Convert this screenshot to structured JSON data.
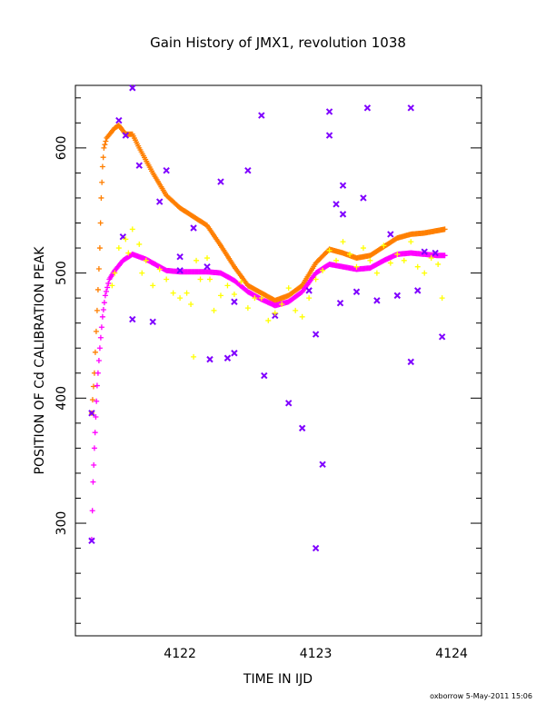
{
  "chart_data": {
    "type": "scatter",
    "title": "Gain History of JMX1, revolution 1038",
    "xlabel": "TIME IN IJD",
    "ylabel": "POSITION OF Cd CALIBRATION PEAK",
    "xlim": [
      4121.23,
      4124.22
    ],
    "ylim": [
      210,
      650
    ],
    "x_ticks": [
      4122,
      4123,
      4124
    ],
    "y_ticks": [
      300,
      400,
      500,
      600
    ],
    "x_ticks_text": [
      "4122",
      "4123",
      "4124"
    ],
    "y_ticks_text": [
      "300",
      "400",
      "500",
      "600"
    ],
    "grid": false,
    "legend": "none",
    "footer": "oxborrow  5-May-2011 15:06",
    "series": [
      {
        "color": "#ff7f00",
        "style": "curve",
        "points": [
          [
            4121.35,
            388
          ],
          [
            4121.37,
            420
          ],
          [
            4121.39,
            470
          ],
          [
            4121.41,
            520
          ],
          [
            4121.42,
            560
          ],
          [
            4121.43,
            585
          ],
          [
            4121.44,
            600
          ],
          [
            4121.46,
            608
          ],
          [
            4121.49,
            612
          ],
          [
            4121.52,
            616
          ],
          [
            4121.55,
            618
          ],
          [
            4121.6,
            611
          ],
          [
            4121.65,
            611
          ],
          [
            4121.7,
            600
          ],
          [
            4121.8,
            580
          ],
          [
            4121.9,
            562
          ],
          [
            4122.0,
            552
          ],
          [
            4122.1,
            545
          ],
          [
            4122.2,
            538
          ],
          [
            4122.3,
            522
          ],
          [
            4122.4,
            505
          ],
          [
            4122.5,
            490
          ],
          [
            4122.6,
            484
          ],
          [
            4122.7,
            478
          ],
          [
            4122.8,
            482
          ],
          [
            4122.9,
            490
          ],
          [
            4123.0,
            508
          ],
          [
            4123.1,
            519
          ],
          [
            4123.2,
            516
          ],
          [
            4123.3,
            512
          ],
          [
            4123.4,
            514
          ],
          [
            4123.5,
            521
          ],
          [
            4123.6,
            528
          ],
          [
            4123.7,
            531
          ],
          [
            4123.8,
            532
          ],
          [
            4123.9,
            534
          ],
          [
            4123.95,
            535
          ]
        ]
      },
      {
        "color": "#ff00ff",
        "style": "curve",
        "points": [
          [
            4121.35,
            287
          ],
          [
            4121.36,
            333
          ],
          [
            4121.37,
            360
          ],
          [
            4121.38,
            385
          ],
          [
            4121.39,
            410
          ],
          [
            4121.41,
            440
          ],
          [
            4121.43,
            465
          ],
          [
            4121.45,
            482
          ],
          [
            4121.48,
            495
          ],
          [
            4121.52,
            502
          ],
          [
            4121.58,
            510
          ],
          [
            4121.65,
            515
          ],
          [
            4121.75,
            511
          ],
          [
            4121.9,
            502
          ],
          [
            4122.0,
            501
          ],
          [
            4122.1,
            501
          ],
          [
            4122.2,
            501
          ],
          [
            4122.3,
            500
          ],
          [
            4122.4,
            494
          ],
          [
            4122.5,
            485
          ],
          [
            4122.6,
            479
          ],
          [
            4122.7,
            474
          ],
          [
            4122.8,
            477
          ],
          [
            4122.9,
            485
          ],
          [
            4123.0,
            500
          ],
          [
            4123.1,
            507
          ],
          [
            4123.2,
            505
          ],
          [
            4123.3,
            503
          ],
          [
            4123.4,
            504
          ],
          [
            4123.5,
            510
          ],
          [
            4123.6,
            515
          ],
          [
            4123.7,
            516
          ],
          [
            4123.8,
            515
          ],
          [
            4123.9,
            514
          ],
          [
            4123.95,
            514
          ]
        ]
      },
      {
        "color": "#7f00ff",
        "style": "points",
        "points": [
          [
            4121.35,
            388
          ],
          [
            4121.35,
            286
          ],
          [
            4121.55,
            622
          ],
          [
            4121.6,
            610
          ],
          [
            4121.65,
            648
          ],
          [
            4121.58,
            529
          ],
          [
            4121.65,
            463
          ],
          [
            4121.8,
            461
          ],
          [
            4121.7,
            586
          ],
          [
            4121.85,
            557
          ],
          [
            4121.9,
            582
          ],
          [
            4122.0,
            502
          ],
          [
            4122.0,
            513
          ],
          [
            4122.1,
            536
          ],
          [
            4122.2,
            505
          ],
          [
            4122.22,
            431
          ],
          [
            4122.3,
            573
          ],
          [
            4122.35,
            432
          ],
          [
            4122.4,
            436
          ],
          [
            4122.4,
            477
          ],
          [
            4122.5,
            582
          ],
          [
            4122.6,
            626
          ],
          [
            4122.62,
            418
          ],
          [
            4122.7,
            466
          ],
          [
            4122.8,
            396
          ],
          [
            4122.9,
            376
          ],
          [
            4122.95,
            486
          ],
          [
            4123.0,
            451
          ],
          [
            4123.0,
            280
          ],
          [
            4123.05,
            347
          ],
          [
            4123.1,
            629
          ],
          [
            4123.1,
            610
          ],
          [
            4123.15,
            555
          ],
          [
            4123.2,
            570
          ],
          [
            4123.2,
            547
          ],
          [
            4123.18,
            476
          ],
          [
            4123.3,
            485
          ],
          [
            4123.35,
            560
          ],
          [
            4123.38,
            632
          ],
          [
            4123.45,
            478
          ],
          [
            4123.55,
            531
          ],
          [
            4123.6,
            482
          ],
          [
            4123.7,
            632
          ],
          [
            4123.7,
            429
          ],
          [
            4123.75,
            486
          ],
          [
            4123.8,
            517
          ],
          [
            4123.93,
            449
          ],
          [
            4123.88,
            516
          ]
        ]
      },
      {
        "color": "#ffff00",
        "style": "points",
        "points": [
          [
            4121.5,
            490
          ],
          [
            4121.52,
            500
          ],
          [
            4121.55,
            520
          ],
          [
            4121.6,
            527
          ],
          [
            4121.62,
            516
          ],
          [
            4121.65,
            535
          ],
          [
            4121.7,
            523
          ],
          [
            4121.72,
            500
          ],
          [
            4121.75,
            510
          ],
          [
            4121.8,
            490
          ],
          [
            4121.85,
            503
          ],
          [
            4121.9,
            495
          ],
          [
            4121.95,
            484
          ],
          [
            4122.0,
            480
          ],
          [
            4122.05,
            484
          ],
          [
            4122.08,
            475
          ],
          [
            4122.1,
            433
          ],
          [
            4122.12,
            510
          ],
          [
            4122.15,
            495
          ],
          [
            4122.2,
            512
          ],
          [
            4122.22,
            495
          ],
          [
            4122.25,
            470
          ],
          [
            4122.3,
            482
          ],
          [
            4122.35,
            490
          ],
          [
            4122.4,
            483
          ],
          [
            4122.45,
            493
          ],
          [
            4122.5,
            472
          ],
          [
            4122.55,
            480
          ],
          [
            4122.6,
            480
          ],
          [
            4122.65,
            462
          ],
          [
            4122.7,
            468
          ],
          [
            4122.75,
            475
          ],
          [
            4122.8,
            488
          ],
          [
            4122.85,
            470
          ],
          [
            4122.9,
            465
          ],
          [
            4122.95,
            480
          ],
          [
            4123.0,
            495
          ],
          [
            4123.05,
            502
          ],
          [
            4123.1,
            518
          ],
          [
            4123.15,
            510
          ],
          [
            4123.2,
            525
          ],
          [
            4123.25,
            515
          ],
          [
            4123.3,
            505
          ],
          [
            4123.35,
            520
          ],
          [
            4123.4,
            510
          ],
          [
            4123.45,
            500
          ],
          [
            4123.5,
            522
          ],
          [
            4123.55,
            508
          ],
          [
            4123.6,
            515
          ],
          [
            4123.65,
            510
          ],
          [
            4123.7,
            525
          ],
          [
            4123.75,
            505
          ],
          [
            4123.8,
            500
          ],
          [
            4123.85,
            512
          ],
          [
            4123.9,
            507
          ],
          [
            4123.93,
            480
          ]
        ]
      }
    ]
  }
}
